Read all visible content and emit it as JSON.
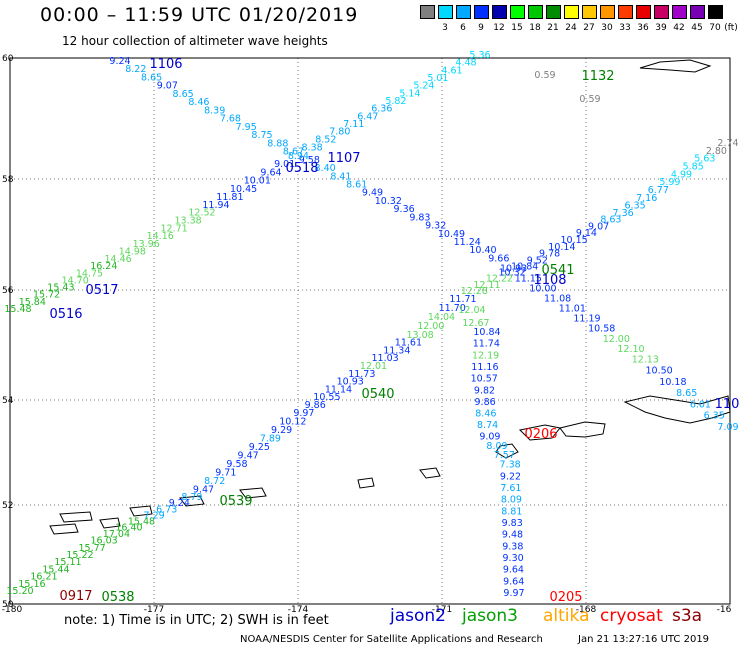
{
  "header": {
    "title": "00:00 – 11:59 UTC 01/20/2019",
    "subtitle": "12 hour collection of altimeter wave heights"
  },
  "legend": {
    "unit": "(ft)",
    "items": [
      {
        "label": "",
        "color": "#7f7f7f"
      },
      {
        "label": "3",
        "color": "#00d8ff"
      },
      {
        "label": "6",
        "color": "#00a8ff"
      },
      {
        "label": "9",
        "color": "#0030ff"
      },
      {
        "label": "12",
        "color": "#0000b0"
      },
      {
        "label": "15",
        "color": "#00ff00"
      },
      {
        "label": "18",
        "color": "#00c800"
      },
      {
        "label": "21",
        "color": "#008c00"
      },
      {
        "label": "24",
        "color": "#ffff00"
      },
      {
        "label": "27",
        "color": "#ffc800"
      },
      {
        "label": "30",
        "color": "#ff9600"
      },
      {
        "label": "33",
        "color": "#ff3c00"
      },
      {
        "label": "36",
        "color": "#e80000"
      },
      {
        "label": "39",
        "color": "#c80064"
      },
      {
        "label": "42",
        "color": "#a000c8"
      },
      {
        "label": "45",
        "color": "#7800b4"
      },
      {
        "label": "70",
        "color": "#000000"
      }
    ]
  },
  "axes": {
    "lon_labels": [
      "-180",
      "-177",
      "-174",
      "-171",
      "-168",
      "-16"
    ],
    "lat_labels": [
      "60",
      "58",
      "56",
      "54",
      "52",
      "50"
    ]
  },
  "satellites": [
    {
      "name": "jason2",
      "color": "#0000cc"
    },
    {
      "name": "jason3",
      "color": "#00a000"
    },
    {
      "name": "altika",
      "color": "#ffa500"
    },
    {
      "name": "cryosat",
      "color": "#ff0000"
    },
    {
      "name": "s3a",
      "color": "#8b0000"
    }
  ],
  "footer": {
    "note": "note:  1) Time is in UTC;  2) SWH is in feet",
    "credit": "NOAA/NESDIS Center for Satellite Applications and Research",
    "timestamp": "Jan 21 13:27:16 UTC 2019"
  },
  "map": {
    "time_labels": [
      {
        "text": "1106",
        "color": "#0000cc"
      },
      {
        "text": "0518",
        "color": "#0000cc"
      },
      {
        "text": "1107",
        "color": "#0000cc"
      },
      {
        "text": "1132",
        "color": "#008000"
      },
      {
        "text": "0517",
        "color": "#0000cc"
      },
      {
        "text": "0516",
        "color": "#0000cc"
      },
      {
        "text": "0541",
        "color": "#008000"
      },
      {
        "text": "1108",
        "color": "#0000cc"
      },
      {
        "text": "0540",
        "color": "#008000"
      },
      {
        "text": "0206",
        "color": "#ff0000"
      },
      {
        "text": "0539",
        "color": "#008000"
      },
      {
        "text": "0917",
        "color": "#8b0000"
      },
      {
        "text": "0538",
        "color": "#008000"
      },
      {
        "text": "0205",
        "color": "#ff0000"
      },
      {
        "text": "110",
        "color": "#0000cc"
      }
    ],
    "tracks": [
      {
        "name": "A",
        "values": [
          9.24,
          8.22,
          8.65,
          9.07,
          8.65,
          8.46,
          8.39,
          7.68,
          7.95,
          8.75,
          8.88,
          8.67,
          9.58,
          8.4,
          8.41,
          8.61,
          9.49,
          10.32,
          9.36,
          9.83,
          9.32,
          10.49,
          11.24,
          10.4,
          9.66,
          10.93,
          11.15,
          10.0,
          11.08,
          11.01,
          11.19,
          10.58,
          12.0,
          12.1,
          12.13,
          10.5,
          10.18,
          8.65,
          6.01,
          6.35,
          7.09
        ]
      },
      {
        "name": "B",
        "values": [
          15.48,
          15.84,
          15.72,
          15.43,
          14.7,
          14.75,
          16.24,
          14.46,
          14.98,
          13.96,
          14.16,
          12.71,
          13.38,
          12.52,
          11.94,
          11.81,
          10.45,
          10.01,
          9.64,
          9.01,
          8.94,
          8.38,
          8.52,
          7.8,
          7.11,
          6.47,
          6.36,
          5.82,
          5.14,
          5.24,
          5.01,
          4.61,
          4.48,
          5.36
        ]
      },
      {
        "name": "C",
        "values": [
          15.2,
          15.16,
          16.21,
          15.44,
          15.11,
          15.22,
          15.77,
          16.03,
          17.04,
          16.4,
          15.48,
          7.29,
          6.73,
          9.24,
          8.79,
          9.47,
          8.72,
          9.71,
          9.58,
          9.47,
          9.25,
          7.89,
          9.29,
          10.12,
          9.97,
          9.86,
          10.55,
          11.14,
          10.93,
          11.73,
          12.01,
          11.03,
          11.34,
          11.61,
          13.08,
          12.0,
          14.04,
          11.7,
          11.71,
          12.28,
          12.11,
          12.22,
          10.32,
          10.84,
          9.52,
          9.78,
          10.14,
          10.15,
          9.14,
          9.07,
          8.63,
          7.36,
          6.35,
          7.16,
          6.77,
          5.99,
          4.99,
          5.85,
          5.63,
          2.8,
          2.74
        ]
      },
      {
        "name": "D",
        "values": [
          10.84,
          11.74,
          12.19,
          11.16,
          10.57,
          9.82,
          9.86,
          8.46,
          8.74,
          9.09,
          8.09,
          7.57,
          7.38,
          9.22,
          7.61,
          8.09,
          8.81,
          9.83,
          9.48,
          9.38,
          9.3,
          9.64,
          9.64,
          9.97
        ]
      },
      {
        "name": "E",
        "values": [
          12.67,
          12.04
        ]
      },
      {
        "name": "F",
        "values": [
          0.59,
          0.59
        ]
      }
    ]
  }
}
